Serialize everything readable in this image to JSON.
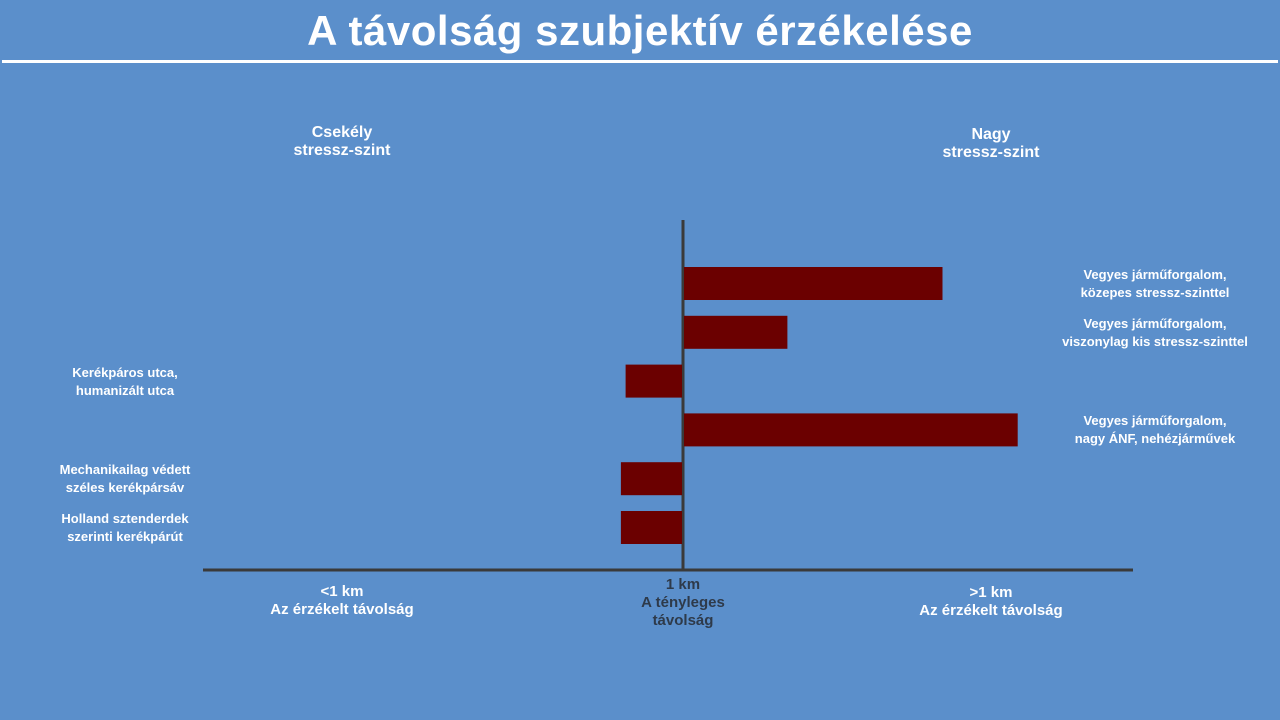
{
  "title": "A távolság szubjektív érzékelése",
  "low_stress_label": "Csekély\nstressz-szint",
  "high_stress_label": "Nagy\nstressz-szint",
  "axis_labels": {
    "left": "<1 km\nAz érzékelt távolság",
    "center": "1 km\nA tényleges\ntávolság",
    "right": ">1 km\nAz érzékelt távolság"
  },
  "colors": {
    "background": "#5b8fcb",
    "bar": "#6b0000",
    "axis": "#3a3a3a",
    "text": "#ffffff"
  },
  "chart_data": {
    "type": "bar",
    "orientation": "horizontal",
    "title": "A távolság szubjektív érzékelése",
    "baseline": 1,
    "xlim": [
      -1,
      1
    ],
    "categories": [
      "Vegyes járműforgalom,\nközepes stressz-szinttel",
      "Vegyes járműforgalom,\nviszonylag kis stressz-szinttel",
      "Kerékpáros utca,\nhumanizált utca",
      "Vegyes járműforgalom,\nnagy ÁNF, nehézjárművek",
      "Mechanikailag védett\nszéles kerékpársáv",
      "Holland sztenderdek\nszerinti kerékpárút"
    ],
    "values": [
      0.55,
      0.22,
      -0.12,
      0.71,
      -0.13,
      -0.13
    ]
  }
}
